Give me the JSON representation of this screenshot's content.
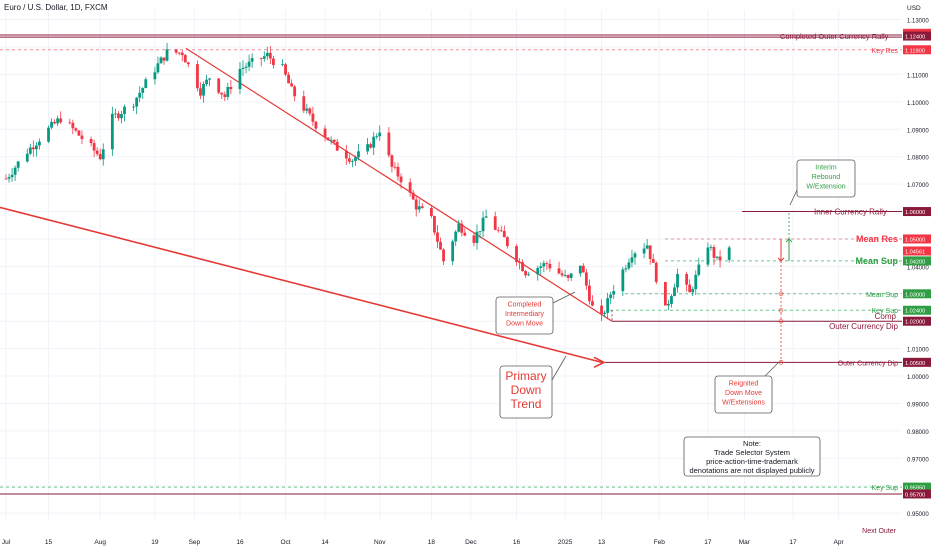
{
  "header": {
    "title": "Euro / U.S. Dollar, 1D, FXCM",
    "currency": "USD"
  },
  "colors": {
    "up": "#089981",
    "down": "#f23645",
    "maroon": "#8b1a3a",
    "green": "#2f9e44",
    "red": "#e53935",
    "grid": "#f0f3fa",
    "axis_text": "#131722"
  },
  "chart_data": {
    "type": "candlestick",
    "instrument": "Euro / U.S. Dollar",
    "timeframe": "1D",
    "source": "FXCM",
    "ylim": [
      0.9475,
      1.1335
    ],
    "y_ticks": [
      "1.13000",
      "1.12000",
      "1.11000",
      "1.10000",
      "1.09000",
      "1.08000",
      "1.07000",
      "1.06000",
      "1.05000",
      "1.04000",
      "1.03000",
      "1.02000",
      "1.01000",
      "1.00000",
      "0.99000",
      "0.98000",
      "0.97000",
      "0.96000",
      "0.95000"
    ],
    "x_ticks": [
      "Jul",
      "15",
      "Aug",
      "19",
      "Sep",
      "16",
      "Oct",
      "14",
      "Nov",
      "18",
      "Dec",
      "16",
      "2025",
      "13",
      "Feb",
      "17",
      "Mar",
      "17",
      "Apr"
    ],
    "price_path": [
      [
        "2024-07-01",
        1.072
      ],
      [
        "2024-07-08",
        1.082
      ],
      [
        "2024-07-15",
        1.09
      ],
      [
        "2024-07-19",
        1.094
      ],
      [
        "2024-07-24",
        1.089
      ],
      [
        "2024-08-01",
        1.08
      ],
      [
        "2024-08-05",
        1.094
      ],
      [
        "2024-08-12",
        1.1
      ],
      [
        "2024-08-19",
        1.112
      ],
      [
        "2024-08-23",
        1.118
      ],
      [
        "2024-08-28",
        1.118
      ],
      [
        "2024-09-03",
        1.104
      ],
      [
        "2024-09-06",
        1.109
      ],
      [
        "2024-09-11",
        1.102
      ],
      [
        "2024-09-16",
        1.112
      ],
      [
        "2024-09-25",
        1.117
      ],
      [
        "2024-09-30",
        1.112
      ],
      [
        "2024-10-03",
        1.104
      ],
      [
        "2024-10-10",
        1.093
      ],
      [
        "2024-10-17",
        1.084
      ],
      [
        "2024-10-23",
        1.079
      ],
      [
        "2024-10-28",
        1.083
      ],
      [
        "2024-11-01",
        1.09
      ],
      [
        "2024-11-05",
        1.076
      ],
      [
        "2024-11-08",
        1.072
      ],
      [
        "2024-11-13",
        1.062
      ],
      [
        "2024-11-18",
        1.057
      ],
      [
        "2024-11-22",
        1.042
      ],
      [
        "2024-11-27",
        1.055
      ],
      [
        "2024-12-02",
        1.05
      ],
      [
        "2024-12-06",
        1.058
      ],
      [
        "2024-12-12",
        1.05
      ],
      [
        "2024-12-19",
        1.038
      ],
      [
        "2024-12-26",
        1.041
      ],
      [
        "2025-01-02",
        1.035
      ],
      [
        "2025-01-06",
        1.041
      ],
      [
        "2025-01-10",
        1.025
      ],
      [
        "2025-01-13",
        1.021
      ],
      [
        "2025-01-16",
        1.03
      ],
      [
        "2025-01-23",
        1.045
      ],
      [
        "2025-01-28",
        1.048
      ],
      [
        "2025-02-03",
        1.024
      ],
      [
        "2025-02-07",
        1.037
      ],
      [
        "2025-02-11",
        1.03
      ],
      [
        "2025-02-17",
        1.048
      ],
      [
        "2025-02-20",
        1.042
      ],
      [
        "2025-02-24",
        1.046
      ]
    ],
    "horizontal_levels": [
      {
        "label": "Completed Outer Currency Rally",
        "value": 1.124,
        "price_label": "1.12400"
      },
      {
        "label": "Key Res",
        "value": 1.119,
        "price_label": "1.11900"
      },
      {
        "label": "Inner Currency Rally",
        "value": 1.06,
        "price_label": "1.06000"
      },
      {
        "label": "Mean Res",
        "value": 1.05,
        "price_label": "1.05000"
      },
      {
        "label": "Mean Sup",
        "value": 1.042,
        "price_label": "1.04200"
      },
      {
        "label": "Mean Sup",
        "value": 1.03,
        "price_label": "1.03000"
      },
      {
        "label": "Key Sup",
        "value": 1.024,
        "price_label": "1.02400"
      },
      {
        "label": "Completed Outer Currency Dip",
        "value": 1.02,
        "price_label": "1.02000"
      },
      {
        "label": "Outer Currency Dip",
        "value": 1.005,
        "price_label": "1.00500"
      },
      {
        "label": "Key Sup",
        "value": 0.9595,
        "price_label": "0.95950"
      },
      {
        "label": "",
        "value": 0.957,
        "price_label": "0.95700"
      }
    ],
    "current_price": {
      "value": 1.04561,
      "price_label": "1.04561"
    },
    "top_price_label": {
      "value": 1.125,
      "price_label": "1.12500"
    },
    "annotations": {
      "primary_trend": [
        "Primary",
        "Down",
        "Trend"
      ],
      "intermediary": [
        "Completed",
        "Intermediary",
        "Down Move"
      ],
      "interim": [
        "Interim",
        "Rebound",
        "W/Extension"
      ],
      "reignited": [
        "Reignited",
        "Down Move",
        "W/Extensions"
      ],
      "note": [
        "Note:",
        "Trade Selector System",
        "price-action-time-trademark",
        "denotations are not displayed publicly"
      ],
      "next_outer": "Next Outer"
    }
  }
}
